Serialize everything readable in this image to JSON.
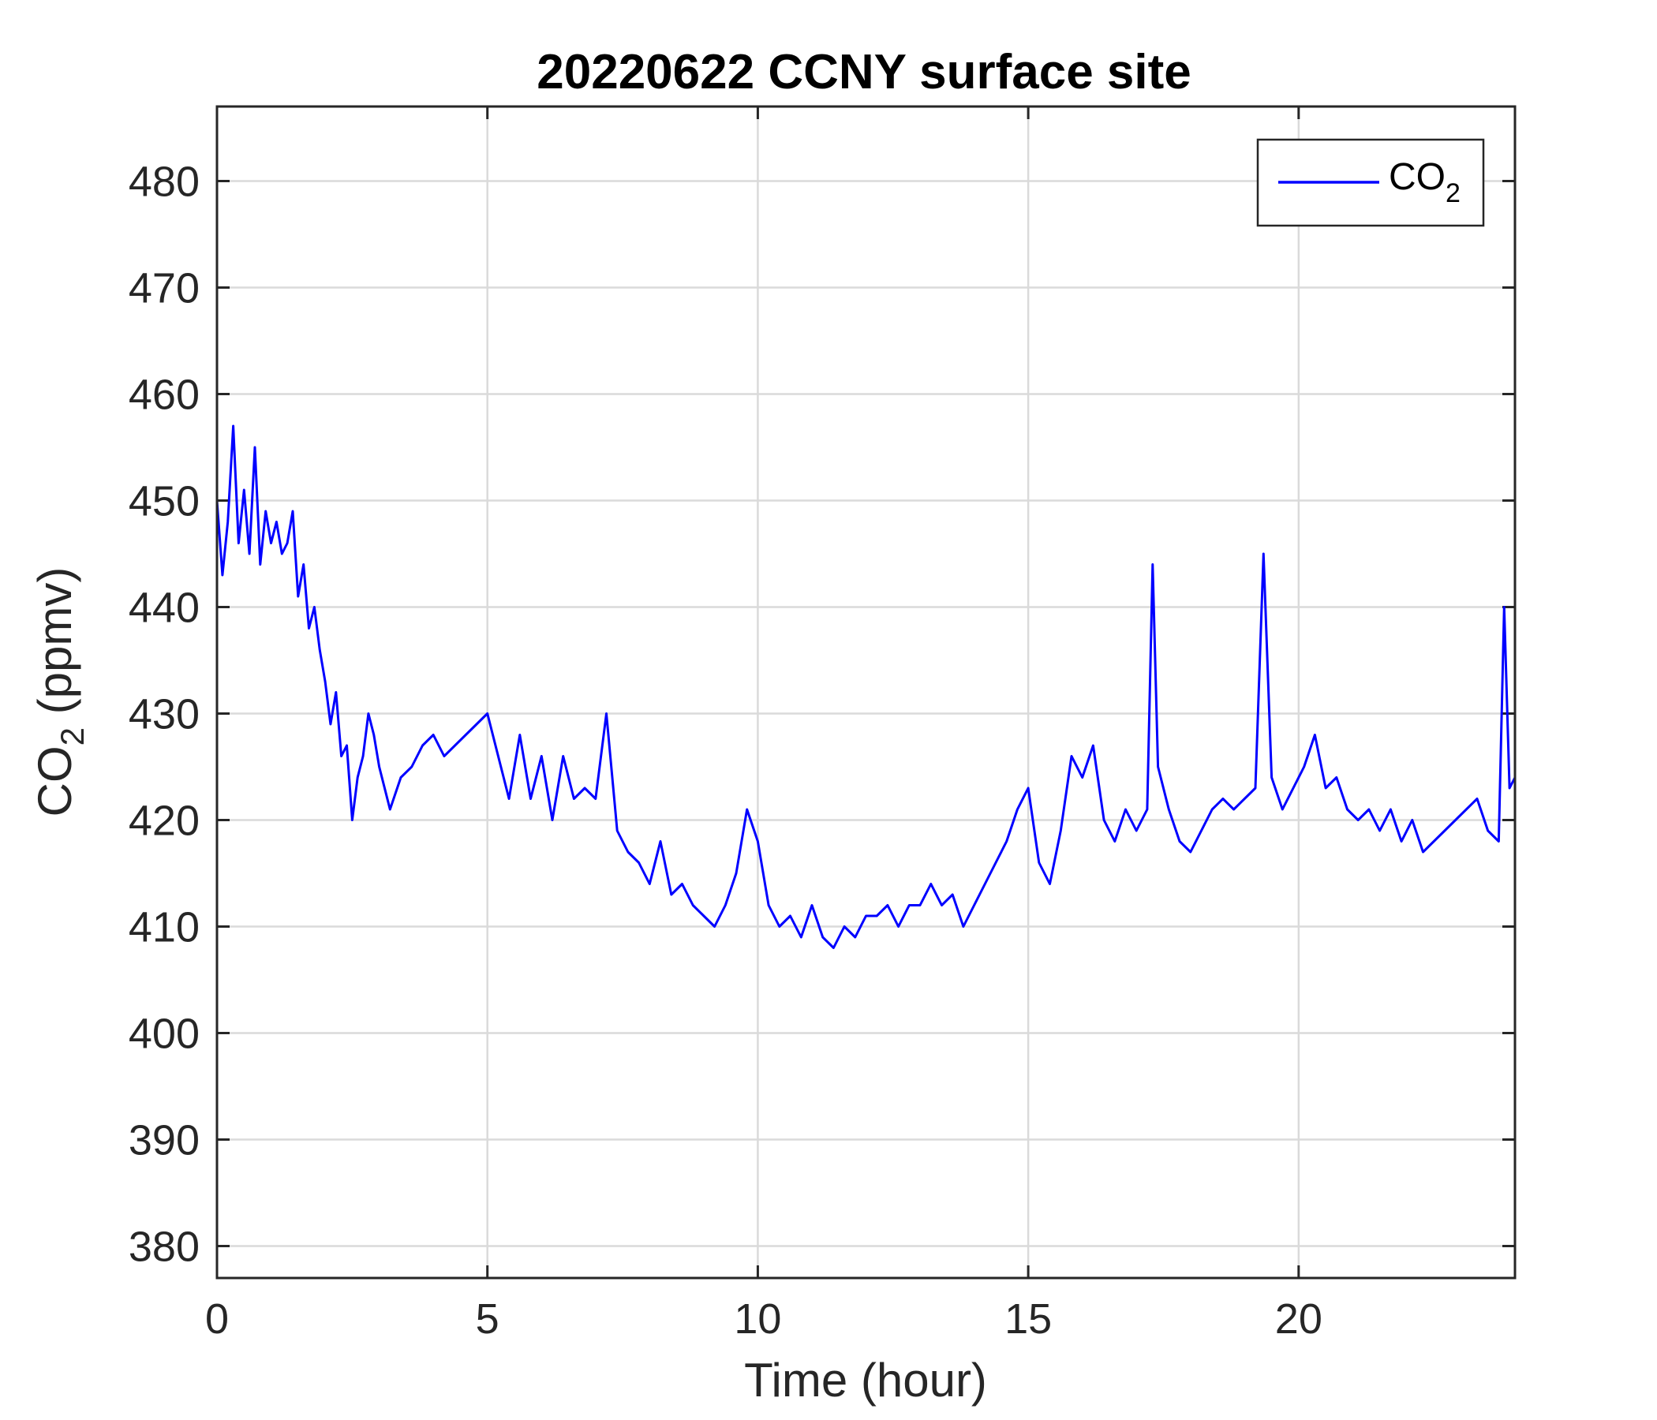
{
  "chart_data": {
    "type": "line",
    "title": "20220622 CCNY surface site",
    "xlabel": "Time (hour)",
    "ylabel": {
      "base": "CO",
      "subscript": "2",
      "rest": " (ppmv)"
    },
    "xlim": [
      0,
      24
    ],
    "ylim": [
      377,
      487
    ],
    "x_ticks": [
      0,
      5,
      10,
      15,
      20
    ],
    "x_tick_labels": [
      "0",
      "5",
      "10",
      "15",
      "20"
    ],
    "y_ticks": [
      380,
      390,
      400,
      410,
      420,
      430,
      440,
      450,
      460,
      470,
      480
    ],
    "y_tick_labels": [
      "380",
      "390",
      "400",
      "410",
      "420",
      "430",
      "440",
      "450",
      "460",
      "470",
      "480"
    ],
    "grid": true,
    "legend_position": "top-right",
    "series": [
      {
        "name": {
          "base": "CO",
          "subscript": "2"
        },
        "color": "#0000ff",
        "x": [
          0,
          0.1,
          0.2,
          0.3,
          0.4,
          0.5,
          0.6,
          0.7,
          0.8,
          0.9,
          1.0,
          1.1,
          1.2,
          1.3,
          1.4,
          1.5,
          1.6,
          1.7,
          1.8,
          1.9,
          2.0,
          2.1,
          2.2,
          2.3,
          2.4,
          2.5,
          2.6,
          2.7,
          2.8,
          2.9,
          3.0,
          3.2,
          3.4,
          3.6,
          3.8,
          4.0,
          4.2,
          4.4,
          4.6,
          4.8,
          5.0,
          5.2,
          5.4,
          5.6,
          5.8,
          6.0,
          6.2,
          6.4,
          6.6,
          6.8,
          7.0,
          7.2,
          7.4,
          7.6,
          7.8,
          8.0,
          8.2,
          8.4,
          8.6,
          8.8,
          9.0,
          9.2,
          9.4,
          9.6,
          9.8,
          10.0,
          10.2,
          10.4,
          10.6,
          10.8,
          11.0,
          11.2,
          11.4,
          11.6,
          11.8,
          12.0,
          12.2,
          12.4,
          12.6,
          12.8,
          13.0,
          13.2,
          13.4,
          13.6,
          13.8,
          14.0,
          14.2,
          14.4,
          14.6,
          14.8,
          15.0,
          15.2,
          15.4,
          15.6,
          15.8,
          16.0,
          16.2,
          16.4,
          16.6,
          16.8,
          17.0,
          17.2,
          17.3,
          17.4,
          17.6,
          17.8,
          18.0,
          18.2,
          18.4,
          18.6,
          18.8,
          19.0,
          19.2,
          19.35,
          19.5,
          19.7,
          19.9,
          20.1,
          20.3,
          20.5,
          20.7,
          20.9,
          21.1,
          21.3,
          21.5,
          21.7,
          21.9,
          22.1,
          22.3,
          22.5,
          22.7,
          22.9,
          23.1,
          23.3,
          23.5,
          23.7,
          23.8,
          23.9,
          24.0
        ],
        "y": [
          450,
          443,
          448,
          457,
          446,
          451,
          445,
          455,
          444,
          449,
          446,
          448,
          445,
          446,
          449,
          441,
          444,
          438,
          440,
          436,
          433,
          429,
          432,
          426,
          427,
          420,
          424,
          426,
          430,
          428,
          425,
          421,
          424,
          425,
          427,
          428,
          426,
          427,
          428,
          429,
          430,
          426,
          422,
          428,
          422,
          426,
          420,
          426,
          422,
          423,
          422,
          430,
          419,
          417,
          416,
          414,
          418,
          413,
          414,
          412,
          411,
          410,
          412,
          415,
          421,
          418,
          412,
          410,
          411,
          409,
          412,
          409,
          408,
          410,
          409,
          411,
          411,
          412,
          410,
          412,
          412,
          414,
          412,
          413,
          410,
          412,
          414,
          416,
          418,
          421,
          423,
          416,
          414,
          419,
          426,
          424,
          427,
          420,
          418,
          421,
          419,
          421,
          444,
          425,
          421,
          418,
          417,
          419,
          421,
          422,
          421,
          422,
          423,
          445,
          424,
          421,
          423,
          425,
          428,
          423,
          424,
          421,
          420,
          421,
          419,
          421,
          418,
          420,
          417,
          418,
          419,
          420,
          421,
          422,
          419,
          418,
          440,
          423,
          424
        ]
      }
    ]
  }
}
